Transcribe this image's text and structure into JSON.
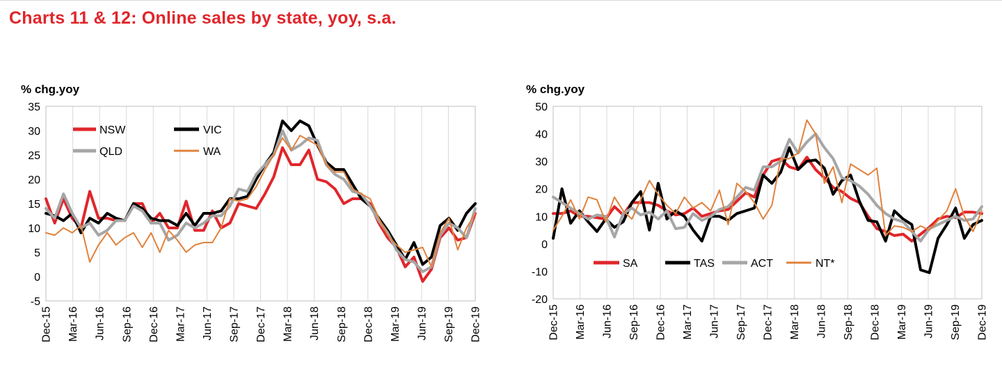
{
  "title": "Charts 11 & 12: Online sales by state, yoy, s.a.",
  "colors": {
    "red": "#e0262b",
    "black": "#000000",
    "grey": "#a6a6a6",
    "orange": "#e0823c"
  },
  "chart_data": [
    {
      "type": "line",
      "ylabel": "% chg.yoy",
      "ylim": [
        -5,
        35
      ],
      "yticks": [
        -5,
        0,
        5,
        10,
        15,
        20,
        25,
        30,
        35
      ],
      "grid": "vertical",
      "x_tick_labels": [
        "Dec-15",
        "Mar-16",
        "Jun-16",
        "Sep-16",
        "Dec-16",
        "Mar-17",
        "Jun-17",
        "Sep-17",
        "Dec-17",
        "Mar-18",
        "Jun-18",
        "Sep-18",
        "Dec-18",
        "Mar-19",
        "Jun-19",
        "Sep-19",
        "Dec-19"
      ],
      "legend_placement": "top-left",
      "series": [
        {
          "name": "NSW",
          "color": "#e0262b",
          "width": 4,
          "values": [
            16,
            11,
            16,
            12,
            10,
            17.5,
            12,
            12,
            11.5,
            11.5,
            15,
            15,
            11,
            13,
            10,
            10,
            15.5,
            9.5,
            9.5,
            13.5,
            10,
            11,
            15,
            14.5,
            14,
            17,
            20.5,
            26.5,
            23,
            23,
            26,
            20,
            19.5,
            18,
            15,
            16,
            16,
            15,
            11,
            8,
            6,
            2,
            4,
            -1,
            1.5,
            8,
            10,
            7.5,
            8,
            13
          ]
        },
        {
          "name": "VIC",
          "color": "#000000",
          "width": 4,
          "values": [
            13,
            12.5,
            11.5,
            13,
            9,
            12,
            11,
            13,
            12,
            11.5,
            15,
            14,
            12,
            11.5,
            11.5,
            10.5,
            13,
            10.5,
            13,
            13,
            13.5,
            16,
            16,
            16.5,
            20,
            23,
            25.5,
            32,
            30,
            32,
            31,
            27,
            23.5,
            22,
            22,
            19,
            16,
            14.5,
            12,
            9.5,
            6.5,
            3.5,
            7,
            2.5,
            4,
            10.5,
            12,
            9.5,
            13,
            15
          ]
        },
        {
          "name": "QLD",
          "color": "#a6a6a6",
          "width": 4,
          "values": [
            14,
            12,
            17,
            13,
            10,
            11,
            8.5,
            9.5,
            11.5,
            11.5,
            14.5,
            13.5,
            11,
            11,
            7.5,
            8.5,
            11,
            10,
            11,
            12.5,
            12.5,
            14.5,
            18,
            17.5,
            21,
            23,
            25,
            30,
            26,
            27,
            28.5,
            28,
            23,
            21,
            20,
            17.5,
            17,
            14.5,
            11.5,
            9,
            5.5,
            3.5,
            3,
            1,
            2,
            8.5,
            11,
            10,
            8,
            14
          ]
        },
        {
          "name": "WA",
          "color": "#e0823c",
          "width": 2,
          "values": [
            9,
            8.5,
            10,
            9,
            10.5,
            3,
            6.5,
            9,
            6.5,
            8,
            9,
            6,
            9,
            5,
            9.5,
            7.5,
            5,
            6.5,
            7,
            7,
            10,
            16,
            15.5,
            16,
            18.5,
            22,
            25,
            28.5,
            26,
            29,
            28,
            27,
            23,
            21.5,
            21.5,
            18,
            17,
            16,
            12,
            8.5,
            6.5,
            5,
            5.5,
            6,
            2,
            9,
            12,
            5.5,
            10,
            13
          ]
        }
      ]
    },
    {
      "type": "line",
      "ylabel": "% chg.yoy",
      "ylim": [
        -20,
        50
      ],
      "yticks": [
        -20,
        -10,
        0,
        10,
        20,
        30,
        40,
        50
      ],
      "grid": "vertical",
      "x_tick_labels": [
        "Dec-15",
        "Mar-16",
        "Jun-16",
        "Sep-16",
        "Dec-16",
        "Mar-17",
        "Jun-17",
        "Sep-17",
        "Dec-17",
        "Mar-18",
        "Jun-18",
        "Sep-18",
        "Dec-18",
        "Mar-19",
        "Jun-19",
        "Sep-19",
        "Dec-19"
      ],
      "legend_placement": "bottom-left",
      "series": [
        {
          "name": "SA",
          "color": "#e0262b",
          "width": 4,
          "values": [
            11,
            11,
            12,
            10,
            10,
            9.5,
            9,
            13.5,
            10.5,
            15,
            15,
            15,
            14,
            12,
            10.5,
            11,
            13,
            10,
            11,
            12,
            12.5,
            15.5,
            18.5,
            17,
            25,
            30,
            31,
            28,
            27,
            31.5,
            27,
            24,
            20.5,
            19,
            16.5,
            15,
            10,
            5.5,
            4.5,
            3,
            3.5,
            1,
            3.5,
            6,
            9,
            10,
            9.5,
            11.5,
            11.5,
            11
          ]
        },
        {
          "name": "TAS",
          "color": "#000000",
          "width": 4,
          "values": [
            2,
            20,
            7.5,
            12,
            8,
            4.5,
            9,
            6,
            8,
            15,
            19,
            5,
            22,
            9,
            12,
            10,
            5,
            1,
            10,
            10,
            8.5,
            11,
            12,
            13,
            25,
            22,
            26,
            35,
            27,
            30,
            30.5,
            27.5,
            18,
            23,
            25,
            15.5,
            8.5,
            8,
            1,
            12,
            9,
            7,
            -9.5,
            -10.5,
            2,
            7,
            13,
            2,
            7,
            8.5
          ]
        },
        {
          "name": "ACT",
          "color": "#a6a6a6",
          "width": 4,
          "values": [
            17,
            15,
            13,
            11,
            9,
            10.5,
            10,
            2.5,
            11,
            13,
            10.5,
            11.5,
            9,
            12,
            5.5,
            6,
            11,
            8.5,
            10,
            12.5,
            13.5,
            17,
            20.5,
            19.5,
            28,
            28,
            30,
            38,
            33,
            37,
            40,
            35,
            31,
            24,
            23,
            21,
            18,
            14,
            11,
            9,
            8,
            4.5,
            1,
            5.5,
            7,
            8.5,
            10,
            8.5,
            9,
            13.5
          ]
        },
        {
          "name": "NT*",
          "color": "#e0823c",
          "width": 2,
          "values": [
            5,
            10,
            16,
            9,
            17,
            16,
            8,
            17,
            12,
            9,
            16,
            23,
            18,
            14,
            11,
            17,
            13,
            15,
            12,
            19.5,
            7,
            22,
            19,
            15,
            9,
            14,
            31,
            31,
            33,
            45,
            40,
            22,
            28,
            15,
            29,
            27,
            25,
            27.5,
            3,
            6.5,
            6,
            4.5,
            6.5,
            5,
            8.5,
            12,
            20,
            10,
            4.5,
            12
          ]
        }
      ]
    }
  ]
}
